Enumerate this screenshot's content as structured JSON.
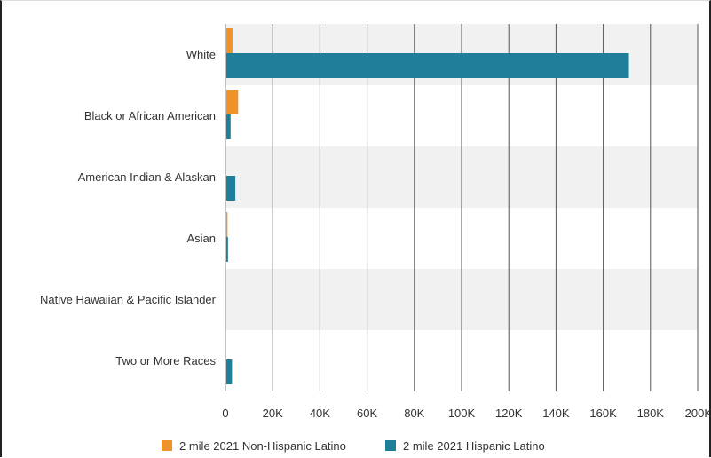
{
  "chart_data": {
    "type": "bar",
    "orientation": "horizontal",
    "categories": [
      "White",
      "Black or African American",
      "American Indian & Alaskan",
      "Asian",
      "Native Hawaiian & Pacific Islander",
      "Two or More Races"
    ],
    "series": [
      {
        "name": "2 mile 2021 Non-Hispanic Latino",
        "color": "#f0922a",
        "values": [
          2600,
          5000,
          0,
          500,
          0,
          0
        ]
      },
      {
        "name": "2 mile 2021 Hispanic Latino",
        "color": "#1f7f9a",
        "values": [
          170500,
          1800,
          3800,
          700,
          0,
          2400
        ]
      }
    ],
    "xlim": [
      0,
      200000
    ],
    "x_ticks": [
      0,
      20000,
      40000,
      60000,
      80000,
      100000,
      120000,
      140000,
      160000,
      180000,
      200000
    ],
    "x_tick_labels": [
      "0",
      "20K",
      "40K",
      "60K",
      "80K",
      "100K",
      "120K",
      "140K",
      "160K",
      "180K",
      "200K"
    ],
    "grid": true,
    "legend_position": "bottom-center",
    "band_color": "#f1f1f1"
  }
}
